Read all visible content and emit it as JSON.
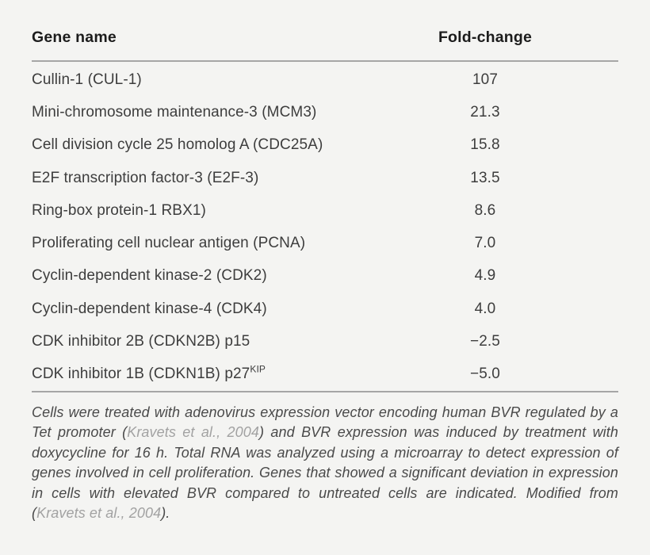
{
  "colors": {
    "background": "#f4f4f2",
    "rule": "#a6a6a6",
    "heading": "#1c1c1c",
    "body_text": "#3d3d3d",
    "caption_text": "#4a4a4a",
    "citation": "#a2a2a2"
  },
  "table": {
    "columns": [
      {
        "label": "Gene name"
      },
      {
        "label": "Fold-change"
      }
    ],
    "rows": [
      {
        "gene": "Cullin-1 (CUL-1)",
        "fold_change": "107"
      },
      {
        "gene": "Mini-chromosome maintenance-3 (MCM3)",
        "fold_change": "21.3"
      },
      {
        "gene": "Cell division cycle 25 homolog A (CDC25A)",
        "fold_change": "15.8"
      },
      {
        "gene": "E2F transcription factor-3 (E2F-3)",
        "fold_change": "13.5"
      },
      {
        "gene": "Ring-box protein-1 RBX1)",
        "fold_change": "8.6"
      },
      {
        "gene": "Proliferating cell nuclear antigen (PCNA)",
        "fold_change": "7.0"
      },
      {
        "gene": "Cyclin-dependent kinase-2 (CDK2)",
        "fold_change": "4.9"
      },
      {
        "gene": "Cyclin-dependent kinase-4 (CDK4)",
        "fold_change": "4.0"
      },
      {
        "gene": "CDK inhibitor 2B (CDKN2B) p15",
        "fold_change": "−2.5"
      },
      {
        "gene": "CDK inhibitor 1B (CDKN1B) p27",
        "gene_superscript": "KIP",
        "fold_change": "−5.0"
      }
    ]
  },
  "caption": {
    "segments": [
      {
        "text": "Cells were treated with adenovirus expression vector encoding human BVR regulated by a Tet promoter (",
        "muted": false
      },
      {
        "text": "Kravets et al., 2004",
        "muted": true
      },
      {
        "text": ") and BVR expression was induced by treatment with doxycycline for 16 h. Total RNA was analyzed using a microarray to detect expression of genes involved in cell proliferation. Genes that showed a significant deviation in expression in cells with elevated BVR compared to untreated cells are indicated. Modified from (",
        "muted": false
      },
      {
        "text": "Kravets et al., 2004",
        "muted": true
      },
      {
        "text": ").",
        "muted": false
      }
    ]
  }
}
